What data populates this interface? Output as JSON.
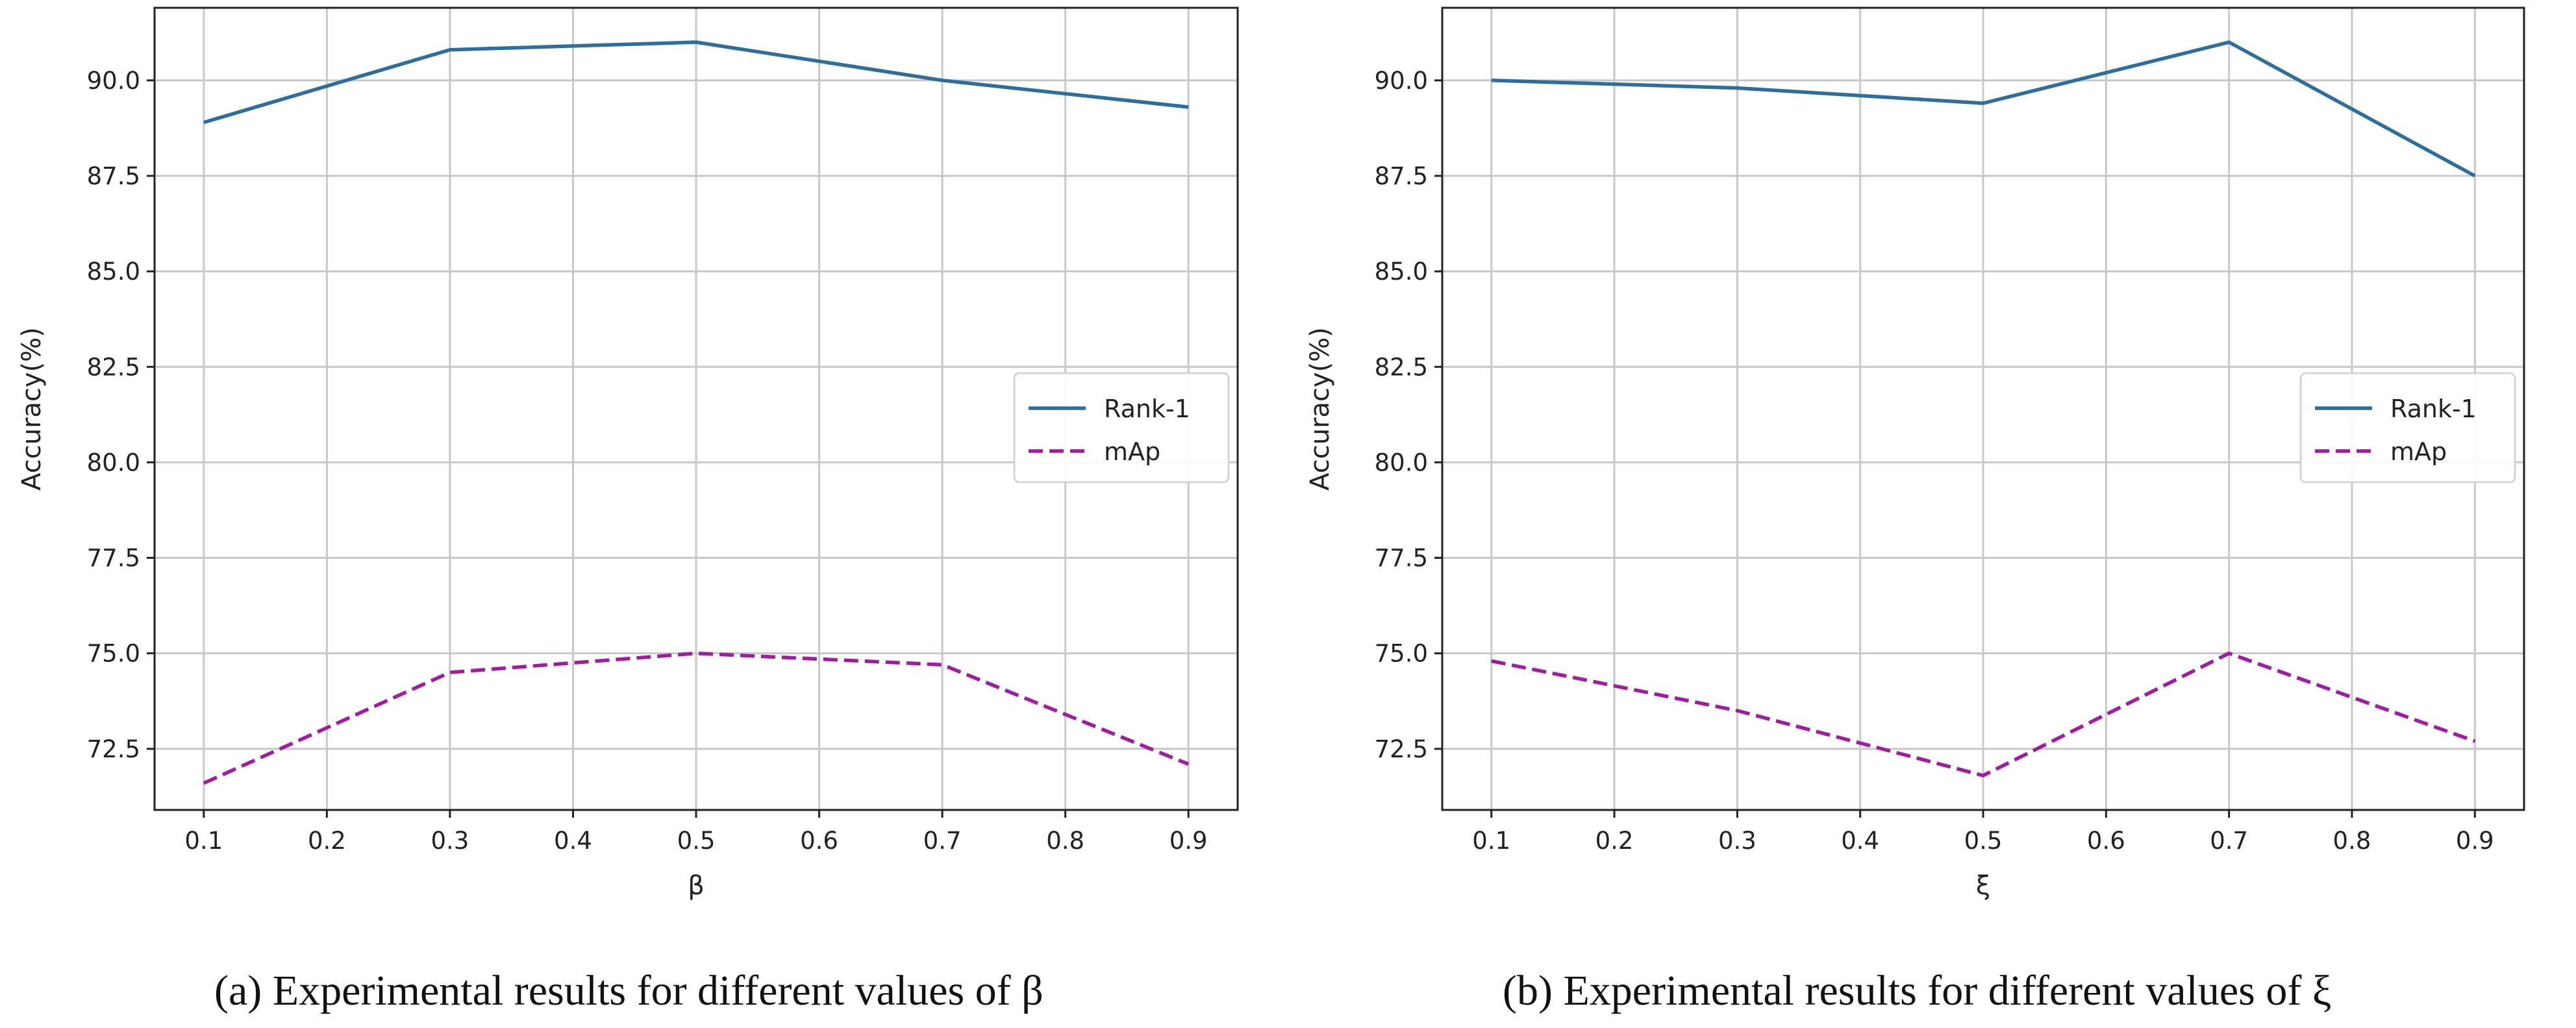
{
  "chart_data": [
    {
      "type": "line",
      "caption": "(a)  Experimental results for different values of β",
      "xlabel": "β",
      "ylabel": "Accuracy(%)",
      "x": [
        0.1,
        0.3,
        0.5,
        0.7,
        0.9
      ],
      "xticks": [
        "0.1",
        "0.2",
        "0.3",
        "0.4",
        "0.5",
        "0.6",
        "0.7",
        "0.8",
        "0.9"
      ],
      "yticks": [
        "72.5",
        "75.0",
        "77.5",
        "80.0",
        "82.5",
        "85.0",
        "87.5",
        "90.0"
      ],
      "xlim": [
        0.06,
        0.94
      ],
      "ylim": [
        70.9,
        91.9
      ],
      "grid": true,
      "legend_position": "center-right",
      "series": [
        {
          "name": "Rank-1",
          "values": [
            88.9,
            90.8,
            91.0,
            90.0,
            89.3
          ],
          "color": "#2e6e9e",
          "style": "solid"
        },
        {
          "name": "mAp",
          "values": [
            71.6,
            74.5,
            75.0,
            74.7,
            72.1
          ],
          "color": "#a01ca0",
          "style": "dashed"
        }
      ]
    },
    {
      "type": "line",
      "caption": "(b)  Experimental results for different values of  ξ",
      "xlabel": "ξ",
      "ylabel": "Accuracy(%)",
      "x": [
        0.1,
        0.3,
        0.5,
        0.7,
        0.9
      ],
      "xticks": [
        "0.1",
        "0.2",
        "0.3",
        "0.4",
        "0.5",
        "0.6",
        "0.7",
        "0.8",
        "0.9"
      ],
      "yticks": [
        "72.5",
        "75.0",
        "77.5",
        "80.0",
        "82.5",
        "85.0",
        "87.5",
        "90.0"
      ],
      "xlim": [
        0.06,
        0.94
      ],
      "ylim": [
        70.9,
        91.9
      ],
      "grid": true,
      "legend_position": "center-right",
      "series": [
        {
          "name": "Rank-1",
          "values": [
            90.0,
            89.8,
            89.4,
            91.0,
            87.5
          ],
          "color": "#2e6e9e",
          "style": "solid"
        },
        {
          "name": "mAp",
          "values": [
            74.8,
            73.5,
            71.8,
            75.0,
            72.7
          ],
          "color": "#a01ca0",
          "style": "dashed"
        }
      ]
    }
  ]
}
